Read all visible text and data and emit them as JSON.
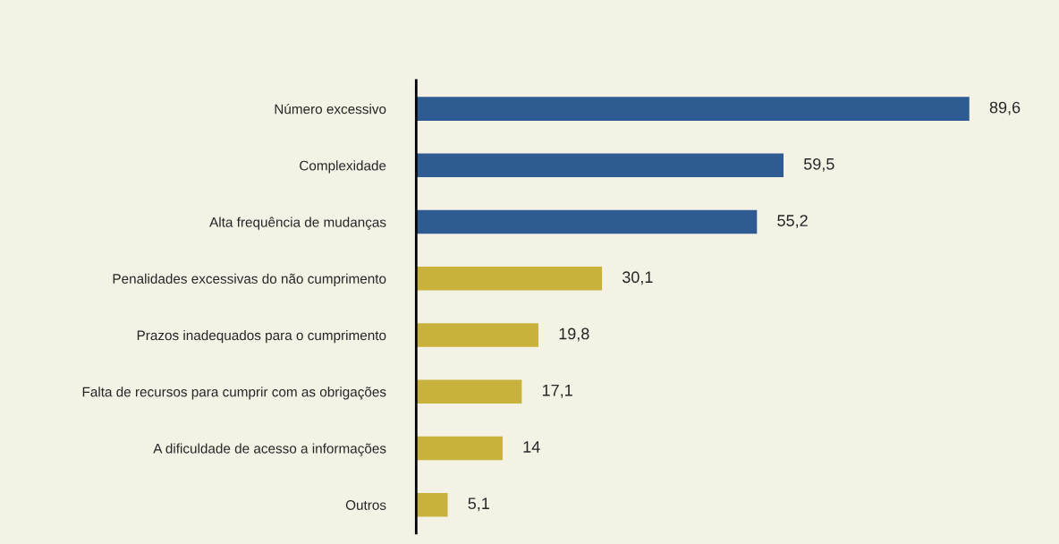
{
  "chart_data": {
    "type": "bar",
    "orientation": "horizontal",
    "categories": [
      "Número excessivo",
      "Complexidade",
      "Alta frequência de mudanças",
      "Penalidades excessivas do não cumprimento",
      "Prazos inadequados para o cumprimento",
      "Falta de recursos para cumprir com as obrigações",
      "A dificuldade de acesso a informações",
      "Outros"
    ],
    "values": [
      89.6,
      59.5,
      55.2,
      30.1,
      19.8,
      17.1,
      14,
      5.1
    ],
    "value_labels": [
      "89,6",
      "59,5",
      "55,2",
      "30,1",
      "19,8",
      "17,1",
      "14",
      "5,1"
    ],
    "colors": [
      "#2f5b93",
      "#2f5b93",
      "#2f5b93",
      "#c8b23c",
      "#c8b23c",
      "#c8b23c",
      "#c8b23c",
      "#c8b23c"
    ],
    "grid": false,
    "legend": false,
    "tick_labels": "y"
  }
}
